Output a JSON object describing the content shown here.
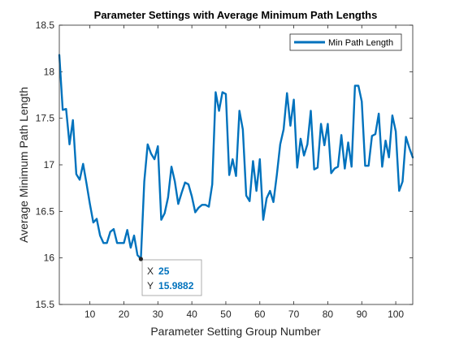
{
  "chart_data": {
    "type": "line",
    "title": "Parameter Settings with Average Minimum Path Lengths",
    "xlabel": "Parameter Setting Group Number",
    "ylabel": "Average Minimum Path Length",
    "xlim": [
      1,
      105
    ],
    "ylim": [
      15.5,
      18.5
    ],
    "xticks": [
      10,
      20,
      30,
      40,
      50,
      60,
      70,
      80,
      90,
      100
    ],
    "yticks": [
      15.5,
      16,
      16.5,
      17,
      17.5,
      18,
      18.5
    ],
    "grid": false,
    "legend_position": "top-right",
    "series": [
      {
        "name": "Min Path Length",
        "color": "#0072BD",
        "x": [
          1,
          2,
          3,
          4,
          5,
          6,
          7,
          8,
          9,
          10,
          11,
          12,
          13,
          14,
          15,
          16,
          17,
          18,
          19,
          20,
          21,
          22,
          23,
          24,
          25,
          26,
          27,
          28,
          29,
          30,
          31,
          32,
          33,
          34,
          35,
          36,
          37,
          38,
          39,
          40,
          41,
          42,
          43,
          44,
          45,
          46,
          47,
          48,
          49,
          50,
          51,
          52,
          53,
          54,
          55,
          56,
          57,
          58,
          59,
          60,
          61,
          62,
          63,
          64,
          65,
          66,
          67,
          68,
          69,
          70,
          71,
          72,
          73,
          74,
          75,
          76,
          77,
          78,
          79,
          80,
          81,
          82,
          83,
          84,
          85,
          86,
          87,
          88,
          89,
          90,
          91,
          92,
          93,
          94,
          95,
          96,
          97,
          98,
          99,
          100,
          101,
          102,
          103,
          104,
          105
        ],
        "y": [
          18.18,
          17.59,
          17.6,
          17.22,
          17.48,
          16.9,
          16.84,
          17.01,
          16.8,
          16.58,
          16.38,
          16.42,
          16.24,
          16.16,
          16.16,
          16.28,
          16.31,
          16.16,
          16.16,
          16.16,
          16.3,
          16.11,
          16.24,
          16.03,
          15.99,
          16.82,
          17.22,
          17.12,
          17.06,
          17.2,
          16.41,
          16.48,
          16.65,
          16.98,
          16.82,
          16.58,
          16.7,
          16.81,
          16.79,
          16.66,
          16.49,
          16.54,
          16.57,
          16.57,
          16.55,
          16.79,
          17.78,
          17.58,
          17.78,
          17.76,
          16.89,
          17.06,
          16.88,
          17.58,
          17.38,
          16.67,
          16.61,
          17.04,
          16.72,
          17.06,
          16.41,
          16.64,
          16.72,
          16.6,
          16.89,
          17.22,
          17.38,
          17.77,
          17.42,
          17.7,
          16.97,
          17.28,
          17.1,
          17.22,
          17.58,
          16.95,
          16.97,
          17.44,
          17.21,
          17.44,
          16.91,
          16.96,
          16.98,
          17.32,
          16.96,
          17.24,
          16.98,
          17.85,
          17.85,
          17.68,
          16.99,
          16.99,
          17.31,
          17.33,
          17.55,
          16.98,
          17.26,
          17.08,
          17.53,
          17.36,
          16.72,
          16.82,
          17.3,
          17.18,
          17.08
        ]
      }
    ],
    "datatip": {
      "x_label": "X",
      "y_label": "Y",
      "x_value": "25",
      "y_value": "15.9882",
      "point": [
        25,
        15.9882
      ]
    }
  }
}
